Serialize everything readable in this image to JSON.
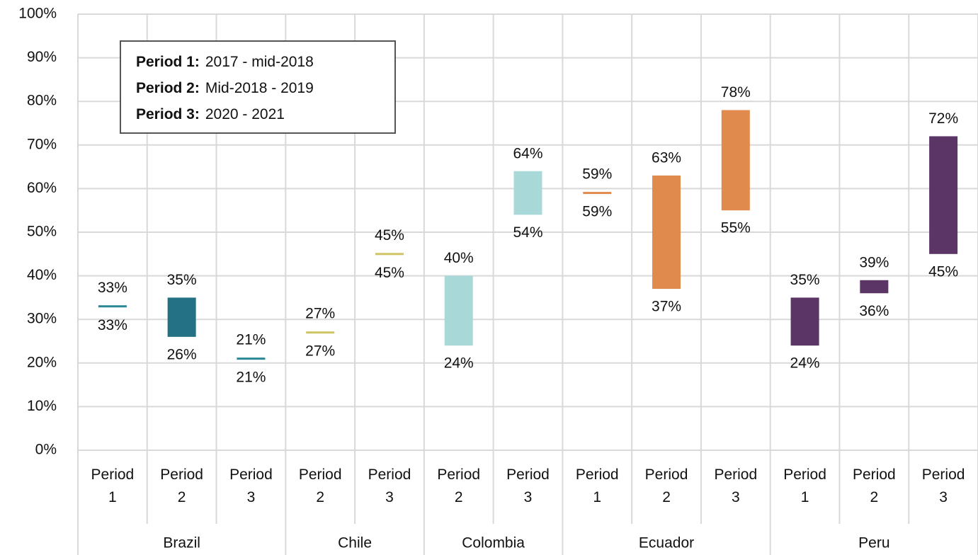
{
  "chart_data": {
    "type": "range_bar",
    "ylim": [
      0,
      100
    ],
    "yticks": [
      {
        "value": 0,
        "label": "0%"
      },
      {
        "value": 10,
        "label": "10%"
      },
      {
        "value": 20,
        "label": "20%"
      },
      {
        "value": 30,
        "label": "30%"
      },
      {
        "value": 40,
        "label": "40%"
      },
      {
        "value": 50,
        "label": "50%"
      },
      {
        "value": 60,
        "label": "60%"
      },
      {
        "value": 70,
        "label": "70%"
      },
      {
        "value": 80,
        "label": "80%"
      },
      {
        "value": 90,
        "label": "90%"
      },
      {
        "value": 100,
        "label": "100%"
      }
    ],
    "grid": true,
    "legend": [
      {
        "label": "Period 1:",
        "text": "2017 - mid-2018"
      },
      {
        "label": "Period 2:",
        "text": "Mid-2018 - 2019"
      },
      {
        "label": "Period 3:",
        "text": "2020 - 2021"
      }
    ],
    "groups": [
      {
        "name": "Brazil",
        "categories": [
          "Period 1",
          "Period 2",
          "Period 3"
        ],
        "low": [
          33,
          26,
          21
        ],
        "high": [
          33,
          35,
          21
        ],
        "low_labels": [
          "33%",
          "26%",
          "21%"
        ],
        "high_labels": [
          "33%",
          "35%",
          "21%"
        ],
        "colors": [
          "#2b8795",
          "#237283",
          "#2b8795"
        ]
      },
      {
        "name": "Chile",
        "categories": [
          "Period 2",
          "Period 3"
        ],
        "low": [
          27,
          45
        ],
        "high": [
          27,
          45
        ],
        "low_labels": [
          "27%",
          "45%"
        ],
        "high_labels": [
          "27%",
          "45%"
        ],
        "colors": [
          "#cfc462",
          "#cfc462"
        ]
      },
      {
        "name": "Colombia",
        "categories": [
          "Period 2",
          "Period 3"
        ],
        "low": [
          24,
          54
        ],
        "high": [
          40,
          64
        ],
        "low_labels": [
          "24%",
          "54%"
        ],
        "high_labels": [
          "40%",
          "64%"
        ],
        "colors": [
          "#a8d8d8",
          "#a8d8d8"
        ]
      },
      {
        "name": "Ecuador",
        "categories": [
          "Period 1",
          "Period 2",
          "Period 3"
        ],
        "low": [
          59,
          37,
          55
        ],
        "high": [
          59,
          63,
          78
        ],
        "low_labels": [
          "59%",
          "37%",
          "55%"
        ],
        "high_labels": [
          "59%",
          "63%",
          "78%"
        ],
        "colors": [
          "#e08a4e",
          "#e08a4e",
          "#e08a4e"
        ]
      },
      {
        "name": "Peru",
        "categories": [
          "Period 1",
          "Period 2",
          "Period 3"
        ],
        "low": [
          24,
          36,
          45
        ],
        "high": [
          35,
          39,
          72
        ],
        "low_labels": [
          "24%",
          "36%",
          "45%"
        ],
        "high_labels": [
          "35%",
          "39%",
          "72%"
        ],
        "colors": [
          "#5b3566",
          "#5b3566",
          "#5b3566"
        ]
      }
    ]
  }
}
